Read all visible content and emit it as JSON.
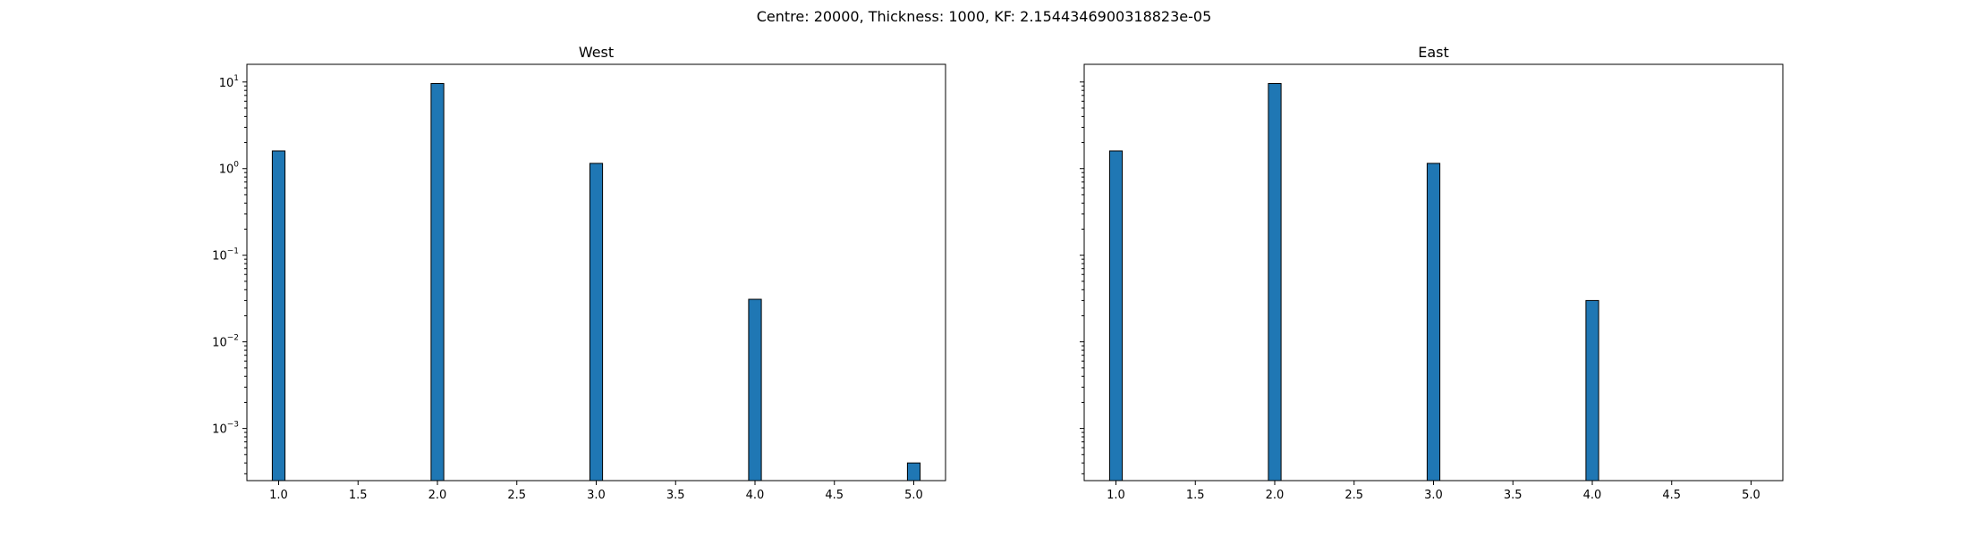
{
  "figure": {
    "suptitle": "Centre: 20000, Thickness: 1000, KF: 2.1544346900318823e-05"
  },
  "chart_data": [
    {
      "type": "bar",
      "title": "West",
      "xlabel": "",
      "ylabel": "",
      "yscale": "log",
      "xlim": [
        0.8,
        5.2
      ],
      "ylim": [
        0.00025,
        16
      ],
      "xticks": [
        "1.0",
        "1.5",
        "2.0",
        "2.5",
        "3.0",
        "3.5",
        "4.0",
        "4.5",
        "5.0"
      ],
      "yticks": [
        {
          "base": "10",
          "exp": "1"
        },
        {
          "base": "10",
          "exp": "0"
        },
        {
          "base": "10",
          "exp": "−1"
        },
        {
          "base": "10",
          "exp": "−2"
        },
        {
          "base": "10",
          "exp": "−3"
        }
      ],
      "bin_width": 0.08,
      "x": [
        1.0,
        2.0,
        3.0,
        4.0,
        5.0
      ],
      "values": [
        1.6,
        9.6,
        1.15,
        0.031,
        0.0004
      ],
      "bar_color": "#1f77b4",
      "edge_color": "#000000"
    },
    {
      "type": "bar",
      "title": "East",
      "xlabel": "",
      "ylabel": "",
      "yscale": "log",
      "xlim": [
        0.8,
        5.2
      ],
      "ylim": [
        0.00025,
        16
      ],
      "xticks": [
        "1.0",
        "1.5",
        "2.0",
        "2.5",
        "3.0",
        "3.5",
        "4.0",
        "4.5",
        "5.0"
      ],
      "yticks": [],
      "bin_width": 0.08,
      "x": [
        1.0,
        2.0,
        3.0,
        4.0
      ],
      "values": [
        1.6,
        9.6,
        1.15,
        0.03
      ],
      "bar_color": "#1f77b4",
      "edge_color": "#000000"
    }
  ]
}
